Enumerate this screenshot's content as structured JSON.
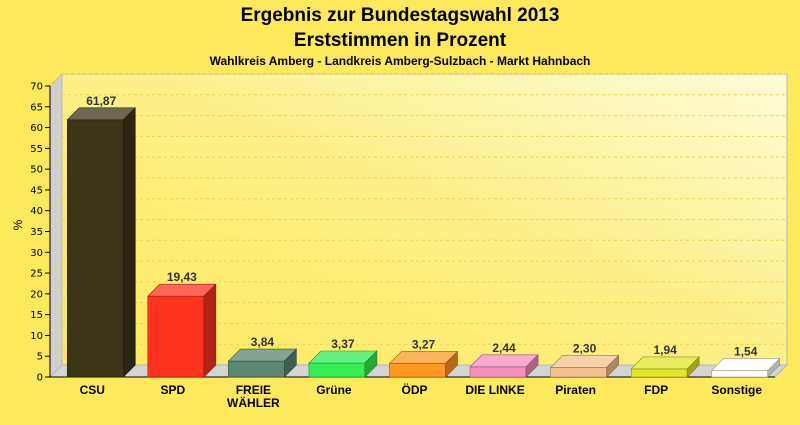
{
  "chart_data": {
    "type": "bar",
    "title": "Ergebnis zur Bundestagswahl 2013",
    "title_line2": "Erststimmen in Prozent",
    "subtitle": "Wahlkreis Amberg - Landkreis Amberg-Sulzbach - Markt Hahnbach",
    "ylabel": "%",
    "ylim": [
      0,
      70
    ],
    "yticks": [
      "0",
      "5",
      "10",
      "15",
      "20",
      "25",
      "30",
      "35",
      "40",
      "45",
      "50",
      "55",
      "60",
      "65",
      "70"
    ],
    "grid": true,
    "categories": [
      "CSU",
      "SPD",
      "FREIE WÄHLER",
      "Grüne",
      "ÖDP",
      "DIE LINKE",
      "Piraten",
      "FDP",
      "Sonstige"
    ],
    "category_lines": [
      [
        "CSU"
      ],
      [
        "SPD"
      ],
      [
        "FREIE",
        "WÄHLER"
      ],
      [
        "Grüne"
      ],
      [
        "ÖDP"
      ],
      [
        "DIE LINKE"
      ],
      [
        "Piraten"
      ],
      [
        "FDP"
      ],
      [
        "Sonstige"
      ]
    ],
    "values": [
      61.87,
      19.43,
      3.84,
      3.37,
      3.27,
      2.44,
      2.3,
      1.94,
      1.54
    ],
    "value_labels": [
      "61,87",
      "19,43",
      "3,84",
      "3,37",
      "3,27",
      "2,44",
      "2,30",
      "1,94",
      "1,54"
    ],
    "colors": [
      "#3d3518",
      "#ff3320",
      "#5b8670",
      "#33ee55",
      "#ff9922",
      "#f58fbf",
      "#f4c28e",
      "#e6e62a",
      "#ffffff"
    ]
  }
}
